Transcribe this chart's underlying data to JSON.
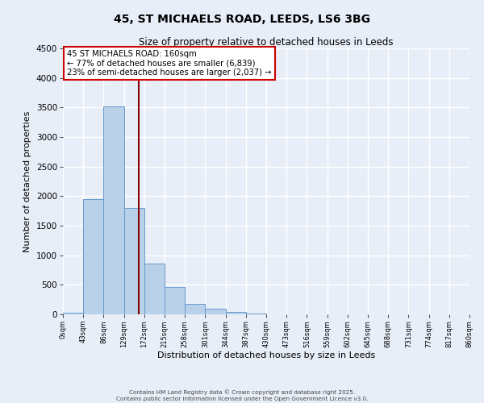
{
  "title": "45, ST MICHAELS ROAD, LEEDS, LS6 3BG",
  "subtitle": "Size of property relative to detached houses in Leeds",
  "xlabel": "Distribution of detached houses by size in Leeds",
  "ylabel": "Number of detached properties",
  "bar_edges": [
    0,
    43,
    86,
    129,
    172,
    215,
    258,
    301,
    344,
    387,
    430,
    473,
    516,
    559,
    602,
    645,
    688,
    731,
    774,
    817,
    860
  ],
  "bar_heights": [
    30,
    1950,
    3520,
    1800,
    860,
    460,
    175,
    95,
    40,
    10,
    0,
    0,
    0,
    0,
    0,
    0,
    0,
    0,
    0,
    0
  ],
  "bar_color": "#b8d0e8",
  "bar_edge_color": "#6699cc",
  "bar_linewidth": 0.7,
  "vline_x": 160,
  "vline_color": "#880000",
  "annotation_title": "45 ST MICHAELS ROAD: 160sqm",
  "annotation_line1": "← 77% of detached houses are smaller (6,839)",
  "annotation_line2": "23% of semi-detached houses are larger (2,037) →",
  "annotation_box_facecolor": "#ffffff",
  "annotation_box_edgecolor": "#cc0000",
  "ylim": [
    0,
    4500
  ],
  "yticks": [
    0,
    500,
    1000,
    1500,
    2000,
    2500,
    3000,
    3500,
    4000,
    4500
  ],
  "background_color": "#e8eef8",
  "grid_color": "#ffffff",
  "footer1": "Contains HM Land Registry data © Crown copyright and database right 2025.",
  "footer2": "Contains public sector information licensed under the Open Government Licence v3.0.",
  "tick_labels": [
    "0sqm",
    "43sqm",
    "86sqm",
    "129sqm",
    "172sqm",
    "215sqm",
    "258sqm",
    "301sqm",
    "344sqm",
    "387sqm",
    "430sqm",
    "473sqm",
    "516sqm",
    "559sqm",
    "602sqm",
    "645sqm",
    "688sqm",
    "731sqm",
    "774sqm",
    "817sqm",
    "860sqm"
  ]
}
